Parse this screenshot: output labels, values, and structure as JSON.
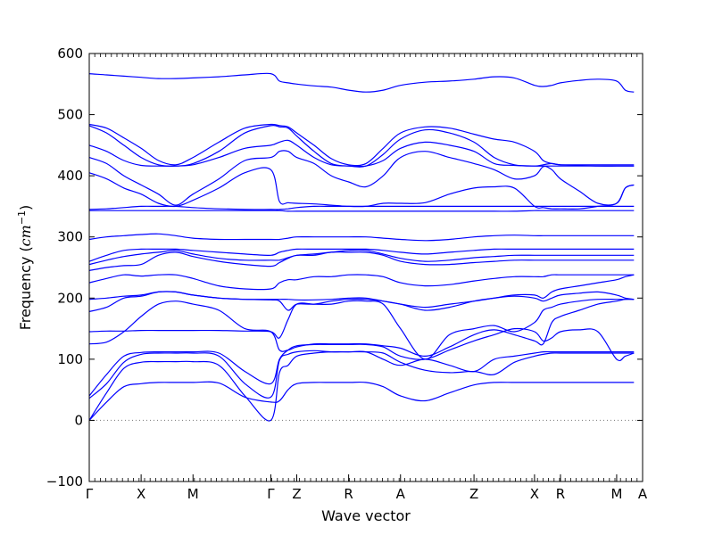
{
  "chart_data": {
    "type": "line",
    "title": "",
    "xlabel": "Wave vector",
    "ylabel_prefix": "Frequency (",
    "ylabel_math": "cm",
    "ylabel_exp": "−1",
    "ylabel_suffix": ")",
    "ylim": [
      -100,
      600
    ],
    "y_ticks": [
      -100,
      0,
      100,
      200,
      300,
      400,
      500,
      600
    ],
    "x_ticks": [
      "Γ",
      "X",
      "M",
      "Γ",
      "Z",
      "R",
      "A",
      "Z",
      "X",
      "R",
      "M",
      "A"
    ],
    "x_tick_positions": [
      0,
      0.6,
      1.2,
      2.1,
      2.4,
      3.0,
      3.6,
      4.45,
      5.15,
      5.45,
      6.1,
      6.4
    ],
    "zero_line": true,
    "grid": false,
    "line_color": "#0000ff",
    "series": [
      {
        "values": [
          0,
          30,
          55,
          60,
          62,
          62,
          62,
          61,
          38,
          30,
          32,
          50,
          60,
          62,
          62,
          62,
          62,
          55,
          40,
          32,
          45,
          58,
          62,
          62,
          62,
          62,
          62,
          62,
          62,
          62,
          62,
          62,
          62
        ]
      },
      {
        "values": [
          0,
          45,
          85,
          95,
          96,
          96,
          96,
          90,
          40,
          0,
          78,
          90,
          105,
          110,
          112,
          112,
          112,
          110,
          95,
          82,
          78,
          80,
          75,
          95,
          105,
          108,
          110,
          110,
          110,
          110,
          110,
          110,
          110
        ]
      },
      {
        "values": [
          36,
          60,
          95,
          108,
          110,
          110,
          110,
          105,
          60,
          38,
          98,
          108,
          112,
          114,
          112,
          112,
          112,
          100,
          90,
          100,
          90,
          80,
          100,
          105,
          110,
          112,
          112,
          112,
          112,
          112,
          112,
          112,
          112
        ]
      },
      {
        "values": [
          40,
          75,
          105,
          111,
          112,
          112,
          112,
          110,
          80,
          60,
          100,
          115,
          122,
          124,
          124,
          124,
          124,
          120,
          105,
          100,
          115,
          130,
          140,
          150,
          145,
          130,
          135,
          145,
          148,
          145,
          100,
          105,
          110
        ]
      },
      {
        "values": [
          125,
          128,
          145,
          170,
          190,
          195,
          190,
          180,
          150,
          145,
          115,
          115,
          120,
          125,
          125,
          125,
          125,
          122,
          118,
          105,
          120,
          140,
          148,
          140,
          130,
          125,
          160,
          170,
          180,
          190,
          195,
          198,
          198
        ]
      },
      {
        "values": [
          145,
          146,
          146,
          147,
          147,
          147,
          147,
          147,
          146,
          145,
          135,
          165,
          190,
          190,
          190,
          195,
          195,
          190,
          150,
          100,
          140,
          150,
          155,
          145,
          160,
          180,
          185,
          190,
          195,
          198,
          198,
          198,
          198
        ]
      },
      {
        "values": [
          178,
          185,
          200,
          203,
          210,
          210,
          205,
          200,
          198,
          197,
          195,
          180,
          190,
          190,
          195,
          198,
          198,
          195,
          190,
          180,
          185,
          195,
          200,
          203,
          200,
          195,
          200,
          205,
          208,
          210,
          205,
          200,
          198
        ]
      },
      {
        "values": [
          198,
          200,
          203,
          205,
          210,
          210,
          205,
          200,
          198,
          198,
          198,
          198,
          197,
          197,
          198,
          200,
          200,
          195,
          190,
          185,
          190,
          195,
          200,
          205,
          205,
          200,
          210,
          215,
          220,
          225,
          230,
          235,
          238
        ]
      },
      {
        "values": [
          225,
          232,
          238,
          236,
          238,
          238,
          232,
          220,
          215,
          215,
          225,
          230,
          230,
          235,
          235,
          238,
          238,
          235,
          225,
          220,
          222,
          228,
          232,
          235,
          235,
          235,
          238,
          238,
          238,
          238,
          238,
          238,
          238
        ]
      },
      {
        "values": [
          245,
          250,
          253,
          255,
          270,
          275,
          268,
          260,
          255,
          252,
          258,
          265,
          270,
          270,
          275,
          275,
          275,
          270,
          260,
          255,
          255,
          258,
          260,
          262,
          262,
          262,
          262,
          262,
          262,
          262,
          262,
          262,
          262
        ]
      },
      {
        "values": [
          255,
          262,
          268,
          272,
          275,
          278,
          272,
          265,
          262,
          262,
          262,
          266,
          270,
          272,
          275,
          278,
          278,
          272,
          265,
          260,
          262,
          266,
          268,
          270,
          270,
          270,
          270,
          270,
          270,
          270,
          270,
          270,
          270
        ]
      },
      {
        "values": [
          260,
          270,
          278,
          280,
          280,
          280,
          278,
          275,
          272,
          270,
          275,
          278,
          280,
          280,
          280,
          280,
          280,
          278,
          275,
          272,
          275,
          278,
          280,
          280,
          280,
          280,
          280,
          280,
          280,
          280,
          280,
          280,
          280
        ]
      },
      {
        "values": [
          296,
          300,
          302,
          304,
          305,
          302,
          298,
          296,
          296,
          296,
          296,
          298,
          300,
          300,
          300,
          300,
          300,
          298,
          296,
          294,
          296,
          300,
          302,
          303,
          302,
          302,
          302,
          302,
          302,
          302,
          302,
          302,
          302
        ]
      },
      {
        "values": [
          343,
          343,
          343,
          343,
          343,
          343,
          343,
          343,
          343,
          343,
          343,
          342,
          342,
          342,
          342,
          342,
          342,
          342,
          342,
          342,
          342,
          342,
          342,
          342,
          343,
          343,
          343,
          343,
          343,
          343,
          343,
          343,
          343
        ]
      },
      {
        "values": [
          345,
          346,
          348,
          350,
          350,
          350,
          348,
          346,
          345,
          345,
          345,
          346,
          348,
          350,
          350,
          350,
          350,
          350,
          350,
          350,
          350,
          350,
          350,
          350,
          350,
          350,
          350,
          350,
          350,
          350,
          350,
          350,
          350
        ]
      },
      {
        "values": [
          405,
          395,
          380,
          370,
          355,
          350,
          360,
          380,
          405,
          410,
          358,
          356,
          355,
          354,
          352,
          350,
          350,
          355,
          355,
          356,
          370,
          380,
          382,
          380,
          350,
          348,
          346,
          346,
          346,
          350,
          355,
          380,
          385
        ]
      },
      {
        "values": [
          430,
          420,
          400,
          385,
          370,
          352,
          370,
          395,
          425,
          430,
          440,
          440,
          430,
          420,
          400,
          390,
          382,
          400,
          430,
          440,
          430,
          420,
          410,
          395,
          400,
          415,
          410,
          395,
          375,
          355,
          355,
          380,
          385
        ]
      },
      {
        "values": [
          450,
          440,
          425,
          417,
          416,
          416,
          418,
          430,
          445,
          450,
          455,
          458,
          450,
          430,
          418,
          416,
          416,
          425,
          445,
          455,
          450,
          440,
          420,
          417,
          416,
          416,
          416,
          416,
          416,
          416,
          416,
          416,
          416
        ]
      },
      {
        "values": [
          482,
          470,
          450,
          430,
          418,
          416,
          420,
          440,
          470,
          482,
          480,
          478,
          465,
          440,
          420,
          416,
          416,
          435,
          460,
          475,
          470,
          455,
          430,
          418,
          416,
          418,
          420,
          418,
          417,
          416,
          416,
          416,
          416
        ]
      },
      {
        "values": [
          484,
          478,
          462,
          445,
          425,
          418,
          430,
          455,
          478,
          484,
          482,
          480,
          470,
          450,
          428,
          418,
          420,
          445,
          470,
          480,
          478,
          468,
          460,
          455,
          440,
          425,
          420,
          418,
          418,
          418,
          418,
          418,
          418
        ]
      },
      {
        "values": [
          567,
          565,
          563,
          561,
          559,
          559,
          560,
          562,
          565,
          567,
          555,
          552,
          550,
          547,
          545,
          540,
          537,
          540,
          548,
          553,
          555,
          558,
          562,
          560,
          548,
          546,
          548,
          552,
          556,
          558,
          555,
          540,
          537
        ]
      }
    ]
  }
}
